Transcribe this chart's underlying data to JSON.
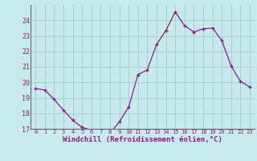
{
  "x": [
    0,
    1,
    2,
    3,
    4,
    5,
    6,
    7,
    8,
    9,
    10,
    11,
    12,
    13,
    14,
    15,
    16,
    17,
    18,
    19,
    20,
    21,
    22,
    23
  ],
  "y": [
    19.6,
    19.5,
    18.9,
    18.2,
    17.55,
    17.1,
    16.9,
    16.75,
    16.7,
    17.45,
    18.4,
    20.5,
    20.8,
    22.45,
    23.35,
    24.55,
    23.65,
    23.25,
    23.45,
    23.5,
    22.7,
    21.05,
    20.05,
    19.7
  ],
  "line_color": "#8b1a8b",
  "marker": "+",
  "bg_color": "#c8eaea",
  "grid_color": "#b0d8d8",
  "xlabel": "Windchill (Refroidissement éolien,°C)",
  "xlabel_color": "#8b1a8b",
  "tick_color": "#8b1a8b",
  "axis_color": "#666666",
  "ylim": [
    17,
    25
  ],
  "yticks": [
    17,
    18,
    19,
    20,
    21,
    22,
    23,
    24
  ],
  "xlim": [
    -0.5,
    23.5
  ],
  "xticks": [
    0,
    1,
    2,
    3,
    4,
    5,
    6,
    7,
    8,
    9,
    10,
    11,
    12,
    13,
    14,
    15,
    16,
    17,
    18,
    19,
    20,
    21,
    22,
    23
  ],
  "xtick_labels": [
    "0",
    "1",
    "2",
    "3",
    "4",
    "5",
    "6",
    "7",
    "8",
    "9",
    "10",
    "11",
    "12",
    "13",
    "14",
    "15",
    "16",
    "17",
    "18",
    "19",
    "20",
    "21",
    "22",
    "23"
  ]
}
